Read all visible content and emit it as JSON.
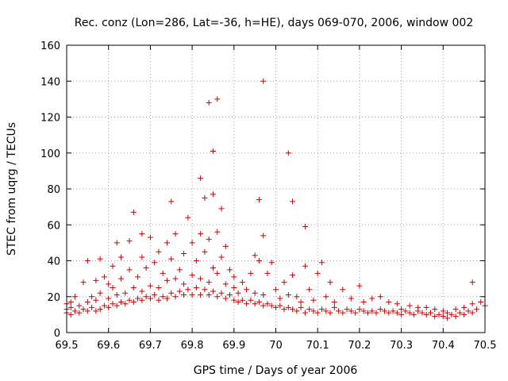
{
  "chart_data": {
    "type": "scatter",
    "title": "Rec. conz (Lon=286, Lat=-36, h=HE), days 069-070, 2006, window 002",
    "xlabel": "GPS time / Days of year 2006",
    "ylabel": "STEC from uqrg / TECUs",
    "xlim": [
      69.5,
      70.5
    ],
    "ylim": [
      0,
      160
    ],
    "xticks": [
      "69.5",
      "69.6",
      "69.7",
      "69.8",
      "69.9",
      "70",
      "70.1",
      "70.2",
      "70.3",
      "70.4",
      "70.5"
    ],
    "yticks": [
      "0",
      "20",
      "40",
      "60",
      "80",
      "100",
      "120",
      "140",
      "160"
    ],
    "grid": true,
    "marker": "plus",
    "color": "#cc0000",
    "series": [
      {
        "name": "STEC",
        "points": [
          [
            69.5,
            11
          ],
          [
            69.5,
            13
          ],
          [
            69.5,
            16
          ],
          [
            69.51,
            10
          ],
          [
            69.51,
            14
          ],
          [
            69.51,
            17
          ],
          [
            69.52,
            12
          ],
          [
            69.52,
            20
          ],
          [
            69.53,
            11
          ],
          [
            69.53,
            15
          ],
          [
            69.54,
            13
          ],
          [
            69.54,
            28
          ],
          [
            69.55,
            12
          ],
          [
            69.55,
            17
          ],
          [
            69.55,
            40
          ],
          [
            69.56,
            14
          ],
          [
            69.56,
            20
          ],
          [
            69.57,
            12
          ],
          [
            69.57,
            18
          ],
          [
            69.57,
            29
          ],
          [
            69.58,
            13
          ],
          [
            69.58,
            22
          ],
          [
            69.58,
            41
          ],
          [
            69.59,
            15
          ],
          [
            69.59,
            31
          ],
          [
            69.6,
            14
          ],
          [
            69.6,
            19
          ],
          [
            69.6,
            27
          ],
          [
            69.61,
            16
          ],
          [
            69.61,
            25
          ],
          [
            69.61,
            37
          ],
          [
            69.62,
            15
          ],
          [
            69.62,
            21
          ],
          [
            69.62,
            50
          ],
          [
            69.63,
            17
          ],
          [
            69.63,
            30
          ],
          [
            69.63,
            42
          ],
          [
            69.64,
            16
          ],
          [
            69.64,
            22
          ],
          [
            69.65,
            18
          ],
          [
            69.65,
            35
          ],
          [
            69.65,
            51
          ],
          [
            69.66,
            17
          ],
          [
            69.66,
            25
          ],
          [
            69.66,
            67
          ],
          [
            69.67,
            19
          ],
          [
            69.67,
            31
          ],
          [
            69.68,
            18
          ],
          [
            69.68,
            23
          ],
          [
            69.68,
            42
          ],
          [
            69.68,
            55
          ],
          [
            69.69,
            20
          ],
          [
            69.69,
            36
          ],
          [
            69.7,
            19
          ],
          [
            69.7,
            26
          ],
          [
            69.7,
            53
          ],
          [
            69.71,
            21
          ],
          [
            69.71,
            39
          ],
          [
            69.72,
            18
          ],
          [
            69.72,
            25
          ],
          [
            69.72,
            45
          ],
          [
            69.73,
            20
          ],
          [
            69.73,
            33
          ],
          [
            69.74,
            19
          ],
          [
            69.74,
            29
          ],
          [
            69.74,
            50
          ],
          [
            69.75,
            22
          ],
          [
            69.75,
            41
          ],
          [
            69.75,
            73
          ],
          [
            69.76,
            20
          ],
          [
            69.76,
            30
          ],
          [
            69.76,
            55
          ],
          [
            69.77,
            23
          ],
          [
            69.77,
            35
          ],
          [
            69.78,
            21
          ],
          [
            69.78,
            27
          ],
          [
            69.78,
            44
          ],
          [
            69.79,
            24
          ],
          [
            69.79,
            64
          ],
          [
            69.8,
            21
          ],
          [
            69.8,
            32
          ],
          [
            69.8,
            50
          ],
          [
            69.81,
            25
          ],
          [
            69.81,
            40
          ],
          [
            69.82,
            21
          ],
          [
            69.82,
            30
          ],
          [
            69.82,
            55
          ],
          [
            69.82,
            86
          ],
          [
            69.83,
            24
          ],
          [
            69.83,
            45
          ],
          [
            69.83,
            75
          ],
          [
            69.84,
            21
          ],
          [
            69.84,
            28
          ],
          [
            69.84,
            52
          ],
          [
            69.84,
            128
          ],
          [
            69.85,
            23
          ],
          [
            69.85,
            36
          ],
          [
            69.85,
            101
          ],
          [
            69.85,
            77
          ],
          [
            69.86,
            20
          ],
          [
            69.86,
            33
          ],
          [
            69.86,
            56
          ],
          [
            69.86,
            130
          ],
          [
            69.87,
            22
          ],
          [
            69.87,
            42
          ],
          [
            69.87,
            69
          ],
          [
            69.88,
            19
          ],
          [
            69.88,
            27
          ],
          [
            69.88,
            48
          ],
          [
            69.89,
            21
          ],
          [
            69.89,
            35
          ],
          [
            69.9,
            18
          ],
          [
            69.9,
            25
          ],
          [
            69.9,
            31
          ],
          [
            69.91,
            17
          ],
          [
            69.91,
            22
          ],
          [
            69.92,
            18
          ],
          [
            69.92,
            28
          ],
          [
            69.93,
            16
          ],
          [
            69.93,
            24
          ],
          [
            69.94,
            18
          ],
          [
            69.94,
            33
          ],
          [
            69.95,
            16
          ],
          [
            69.95,
            22
          ],
          [
            69.95,
            43
          ],
          [
            69.96,
            17
          ],
          [
            69.96,
            40
          ],
          [
            69.96,
            74
          ],
          [
            69.97,
            15
          ],
          [
            69.97,
            21
          ],
          [
            69.97,
            54
          ],
          [
            69.97,
            140
          ],
          [
            69.98,
            16
          ],
          [
            69.98,
            33
          ],
          [
            69.99,
            15
          ],
          [
            69.99,
            39
          ],
          [
            70.0,
            14
          ],
          [
            70.0,
            24
          ],
          [
            70.01,
            15
          ],
          [
            70.01,
            19
          ],
          [
            70.02,
            13
          ],
          [
            70.02,
            28
          ],
          [
            70.03,
            14
          ],
          [
            70.03,
            21
          ],
          [
            70.03,
            100
          ],
          [
            70.04,
            13
          ],
          [
            70.04,
            32
          ],
          [
            70.04,
            73
          ],
          [
            70.05,
            12
          ],
          [
            70.05,
            20
          ],
          [
            70.06,
            14
          ],
          [
            70.06,
            17
          ],
          [
            70.07,
            11
          ],
          [
            70.07,
            37
          ],
          [
            70.07,
            59
          ],
          [
            70.08,
            13
          ],
          [
            70.08,
            24
          ],
          [
            70.09,
            12
          ],
          [
            70.09,
            18
          ],
          [
            70.1,
            11
          ],
          [
            70.1,
            33
          ],
          [
            70.11,
            13
          ],
          [
            70.11,
            39
          ],
          [
            70.12,
            12
          ],
          [
            70.12,
            20
          ],
          [
            70.13,
            11
          ],
          [
            70.13,
            28
          ],
          [
            70.14,
            14
          ],
          [
            70.14,
            17
          ],
          [
            70.15,
            12
          ],
          [
            70.16,
            11
          ],
          [
            70.16,
            24
          ],
          [
            70.17,
            13
          ],
          [
            70.18,
            12
          ],
          [
            70.18,
            19
          ],
          [
            70.19,
            11
          ],
          [
            70.2,
            13
          ],
          [
            70.2,
            26
          ],
          [
            70.21,
            12
          ],
          [
            70.21,
            17
          ],
          [
            70.22,
            11
          ],
          [
            70.23,
            12
          ],
          [
            70.23,
            19
          ],
          [
            70.24,
            11
          ],
          [
            70.25,
            13
          ],
          [
            70.25,
            20
          ],
          [
            70.26,
            12
          ],
          [
            70.27,
            11
          ],
          [
            70.27,
            17
          ],
          [
            70.28,
            12
          ],
          [
            70.29,
            11
          ],
          [
            70.29,
            16
          ],
          [
            70.3,
            10
          ],
          [
            70.3,
            13
          ],
          [
            70.31,
            12
          ],
          [
            70.32,
            11
          ],
          [
            70.32,
            15
          ],
          [
            70.33,
            10
          ],
          [
            70.34,
            12
          ],
          [
            70.34,
            14
          ],
          [
            70.35,
            11
          ],
          [
            70.36,
            10
          ],
          [
            70.36,
            14
          ],
          [
            70.37,
            11
          ],
          [
            70.38,
            9
          ],
          [
            70.38,
            13
          ],
          [
            70.39,
            10
          ],
          [
            70.4,
            9
          ],
          [
            70.4,
            12
          ],
          [
            70.41,
            8
          ],
          [
            70.41,
            11
          ],
          [
            70.42,
            10
          ],
          [
            70.43,
            9
          ],
          [
            70.43,
            13
          ],
          [
            70.44,
            11
          ],
          [
            70.45,
            10
          ],
          [
            70.45,
            14
          ],
          [
            70.46,
            12
          ],
          [
            70.47,
            11
          ],
          [
            70.47,
            16
          ],
          [
            70.47,
            28
          ],
          [
            70.48,
            13
          ],
          [
            70.49,
            17
          ],
          [
            70.5,
            15
          ]
        ]
      }
    ]
  }
}
